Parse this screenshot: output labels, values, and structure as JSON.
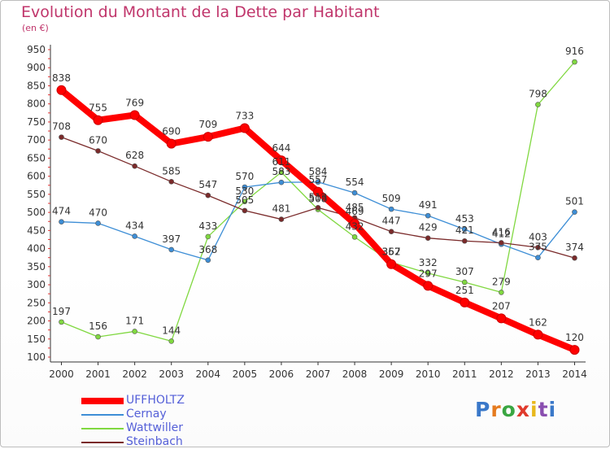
{
  "chart_data": {
    "type": "line",
    "title": "Evolution du Montant de la Dette par Habitant",
    "subtitle": "(en €)",
    "x": [
      2000,
      2001,
      2002,
      2003,
      2004,
      2005,
      2006,
      2007,
      2008,
      2009,
      2010,
      2011,
      2012,
      2013,
      2014
    ],
    "ylim": [
      100,
      950
    ],
    "yticks": [
      100,
      150,
      200,
      250,
      300,
      350,
      400,
      450,
      500,
      550,
      600,
      650,
      700,
      750,
      800,
      850,
      900,
      950
    ],
    "grid": false,
    "legend_placement": "bottom-left",
    "series": [
      {
        "name": "UFFHOLTZ",
        "color": "#ff0000",
        "values": [
          838,
          755,
          769,
          690,
          709,
          733,
          644,
          557,
          469,
          357,
          297,
          251,
          207,
          162,
          120
        ]
      },
      {
        "name": "Cernay",
        "color": "#3d8ed6",
        "values": [
          474,
          470,
          434,
          397,
          368,
          570,
          583,
          584,
          554,
          509,
          491,
          453,
          412,
          375,
          501
        ]
      },
      {
        "name": "Wattwiller",
        "color": "#80d840",
        "values": [
          197,
          156,
          171,
          144,
          433,
          530,
          611,
          508,
          432,
          362,
          332,
          307,
          279,
          798,
          916
        ]
      },
      {
        "name": "Steinbach",
        "color": "#7a2a2a",
        "values": [
          708,
          670,
          628,
          585,
          547,
          505,
          481,
          513,
          485,
          447,
          429,
          421,
          416,
          403,
          374
        ]
      }
    ]
  },
  "logo": {
    "letters": [
      "P",
      "r",
      "o",
      "x",
      "i",
      "t",
      "i"
    ],
    "colors": [
      "#3a78c9",
      "#e57b1f",
      "#3aa642",
      "#e03a2c",
      "#e8b81c",
      "#8a4fb0",
      "#3a78c9"
    ]
  }
}
